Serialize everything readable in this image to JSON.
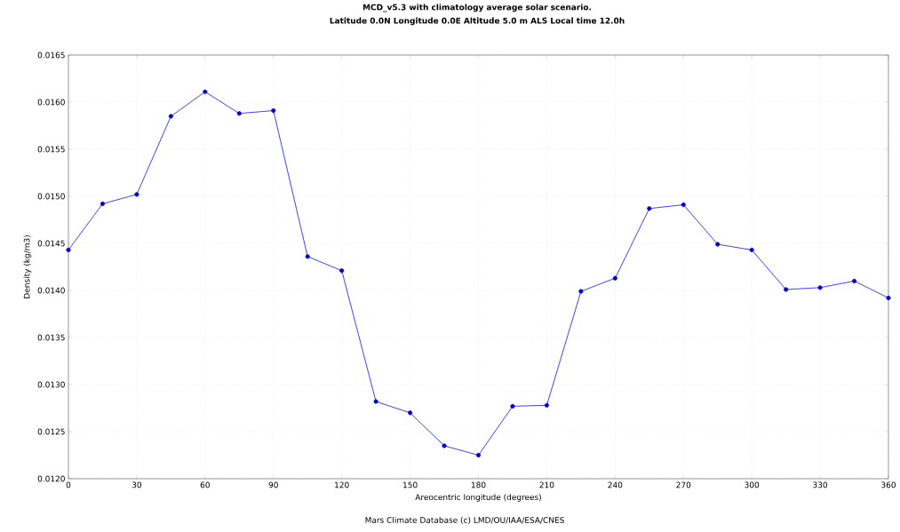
{
  "chart_data": {
    "type": "line",
    "title": "MCD_v5.3 with climatology average solar scenario.",
    "subtitle": "Latitude 0.0N Longitude 0.0E Altitude 5.0 m ALS Local time 12.0h",
    "xlabel": "Areocentric longitude (degrees)",
    "ylabel": "Density (kg/m3)",
    "annotations": [
      "Mars Climate Database (c) LMD/OU/IAA/ESA/CNES"
    ],
    "x": [
      0,
      15,
      30,
      45,
      60,
      75,
      90,
      105,
      120,
      135,
      150,
      165,
      180,
      195,
      210,
      225,
      240,
      255,
      270,
      285,
      300,
      315,
      330,
      345,
      360
    ],
    "series": [
      {
        "color": "#0000ff",
        "values": [
          0.01443,
          0.01492,
          0.01502,
          0.01585,
          0.01611,
          0.01588,
          0.01591,
          0.01436,
          0.01421,
          0.01282,
          0.0127,
          0.01235,
          0.01225,
          0.01277,
          0.01278,
          0.01399,
          0.01413,
          0.01487,
          0.01491,
          0.01449,
          0.01443,
          0.01401,
          0.01403,
          0.0141,
          0.01392
        ]
      }
    ],
    "xlim": [
      0,
      360
    ],
    "ylim": [
      0.012,
      0.0165
    ],
    "xticks": [
      0,
      30,
      60,
      90,
      120,
      150,
      180,
      210,
      240,
      270,
      300,
      330,
      360
    ],
    "yticks": [
      {
        "value": 0.012,
        "label": "0.0120"
      },
      {
        "value": 0.0125,
        "label": "0.0125"
      },
      {
        "value": 0.013,
        "label": "0.0130"
      },
      {
        "value": 0.0135,
        "label": "0.0135"
      },
      {
        "value": 0.014,
        "label": "0.0140"
      },
      {
        "value": 0.0145,
        "label": "0.0145"
      },
      {
        "value": 0.015,
        "label": "0.0150"
      },
      {
        "value": 0.0155,
        "label": "0.0155"
      },
      {
        "value": 0.016,
        "label": "0.0160"
      },
      {
        "value": 0.0165,
        "label": "0.0165"
      }
    ],
    "grid": true,
    "marker": "circle",
    "line_style": "solid"
  }
}
